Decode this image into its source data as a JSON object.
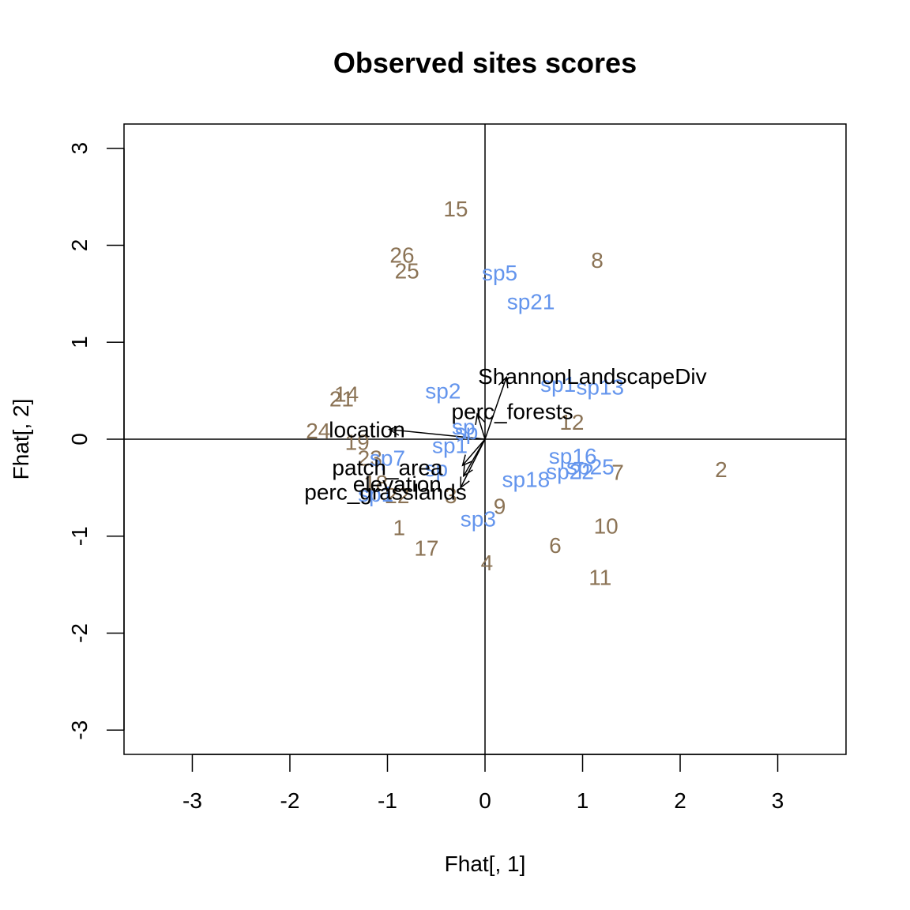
{
  "chart_data": {
    "type": "scatter",
    "title": "Observed sites scores",
    "xlabel": "Fhat[, 1]",
    "ylabel": "Fhat[, 2]",
    "xlim": [
      -3.7,
      3.7
    ],
    "ylim": [
      -3.25,
      3.25
    ],
    "xticks": [
      -3,
      -2,
      -1,
      0,
      1,
      2,
      3
    ],
    "yticks": [
      -3,
      -2,
      -1,
      0,
      1,
      2,
      3
    ],
    "reference_lines": {
      "x": 0,
      "y": 0
    },
    "colors": {
      "sites": "#8B7355",
      "species": "#6495ED",
      "env": "#000000"
    },
    "sites": [
      {
        "label": "15",
        "x": -0.3,
        "y": 2.38
      },
      {
        "label": "26",
        "x": -0.85,
        "y": 1.9
      },
      {
        "label": "25",
        "x": -0.8,
        "y": 1.74
      },
      {
        "label": "8",
        "x": 1.15,
        "y": 1.85
      },
      {
        "label": "14",
        "x": -1.42,
        "y": 0.47
      },
      {
        "label": "21",
        "x": -1.47,
        "y": 0.42
      },
      {
        "label": "24",
        "x": -1.71,
        "y": 0.09
      },
      {
        "label": "19",
        "x": -1.31,
        "y": -0.03
      },
      {
        "label": "23",
        "x": -1.18,
        "y": -0.19
      },
      {
        "label": "18",
        "x": -1.12,
        "y": -0.45
      },
      {
        "label": "1",
        "x": -0.88,
        "y": -0.91
      },
      {
        "label": "17",
        "x": -0.6,
        "y": -1.12
      },
      {
        "label": "4",
        "x": 0.02,
        "y": -1.27
      },
      {
        "label": "6",
        "x": 0.72,
        "y": -1.09
      },
      {
        "label": "11",
        "x": 1.18,
        "y": -1.42
      },
      {
        "label": "10",
        "x": 1.24,
        "y": -0.89
      },
      {
        "label": "12",
        "x": 0.89,
        "y": 0.18
      },
      {
        "label": "7",
        "x": 1.36,
        "y": -0.34
      },
      {
        "label": "2",
        "x": 2.42,
        "y": -0.31
      },
      {
        "label": "9",
        "x": 0.15,
        "y": -0.69
      },
      {
        "label": "22",
        "x": -0.9,
        "y": -0.58
      },
      {
        "label": "3",
        "x": -0.35,
        "y": -0.58
      }
    ],
    "species": [
      {
        "label": "sp5",
        "x": 0.15,
        "y": 1.72
      },
      {
        "label": "sp21",
        "x": 0.47,
        "y": 1.42
      },
      {
        "label": "sp2",
        "x": -0.43,
        "y": 0.5
      },
      {
        "label": "sp1",
        "x": 0.75,
        "y": 0.57
      },
      {
        "label": "sp13",
        "x": 1.18,
        "y": 0.54
      },
      {
        "label": "sp",
        "x": -0.22,
        "y": 0.13
      },
      {
        "label": "sp",
        "x": -0.19,
        "y": 0.08
      },
      {
        "label": "sp1",
        "x": -0.36,
        "y": -0.06
      },
      {
        "label": "sp7",
        "x": -1.0,
        "y": -0.19
      },
      {
        "label": "sp16",
        "x": 0.9,
        "y": -0.17
      },
      {
        "label": "sp25",
        "x": 1.08,
        "y": -0.28
      },
      {
        "label": "sp22",
        "x": 0.87,
        "y": -0.33
      },
      {
        "label": "sp18",
        "x": 0.42,
        "y": -0.41
      },
      {
        "label": "sp3",
        "x": -0.07,
        "y": -0.82
      },
      {
        "label": "sp1",
        "x": -1.12,
        "y": -0.56
      },
      {
        "label": "sp",
        "x": -0.5,
        "y": -0.3
      }
    ],
    "env_vectors": [
      {
        "label": "ShannonLandscapeDiv",
        "x": 0.22,
        "y": 0.64,
        "label_x": 1.1,
        "label_y": 0.65
      },
      {
        "label": "perc_forests",
        "x": -0.08,
        "y": 0.26,
        "label_x": 0.28,
        "label_y": 0.29
      },
      {
        "label": "location",
        "x": -0.98,
        "y": 0.1,
        "label_x": -1.21,
        "label_y": 0.1
      },
      {
        "label": "patch_area",
        "x": -0.23,
        "y": -0.27,
        "label_x": -1.0,
        "label_y": -0.29
      },
      {
        "label": "elevation",
        "x": -0.22,
        "y": -0.38,
        "label_x": -0.9,
        "label_y": -0.46
      },
      {
        "label": "perc_grasslands",
        "x": -0.25,
        "y": -0.5,
        "label_x": -1.02,
        "label_y": -0.54
      }
    ]
  }
}
